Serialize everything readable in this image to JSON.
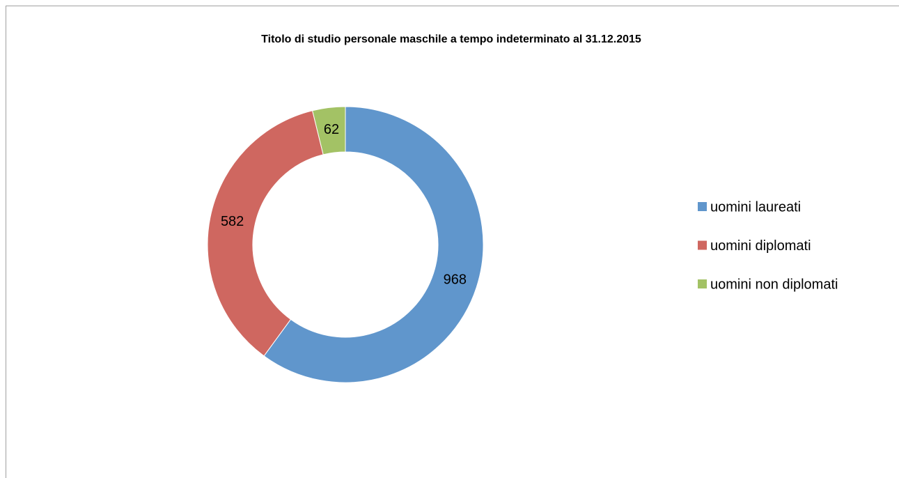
{
  "chart_data": {
    "type": "donut",
    "title": "Titolo di studio personale maschile a tempo indeterminato al 31.12.2015",
    "categories": [
      "uomini laureati",
      "uomini diplomati",
      "uomini non diplomati"
    ],
    "values": [
      968,
      582,
      62
    ],
    "colors": [
      "#6096cc",
      "#cf6760",
      "#a3c265"
    ],
    "legend": "right"
  }
}
